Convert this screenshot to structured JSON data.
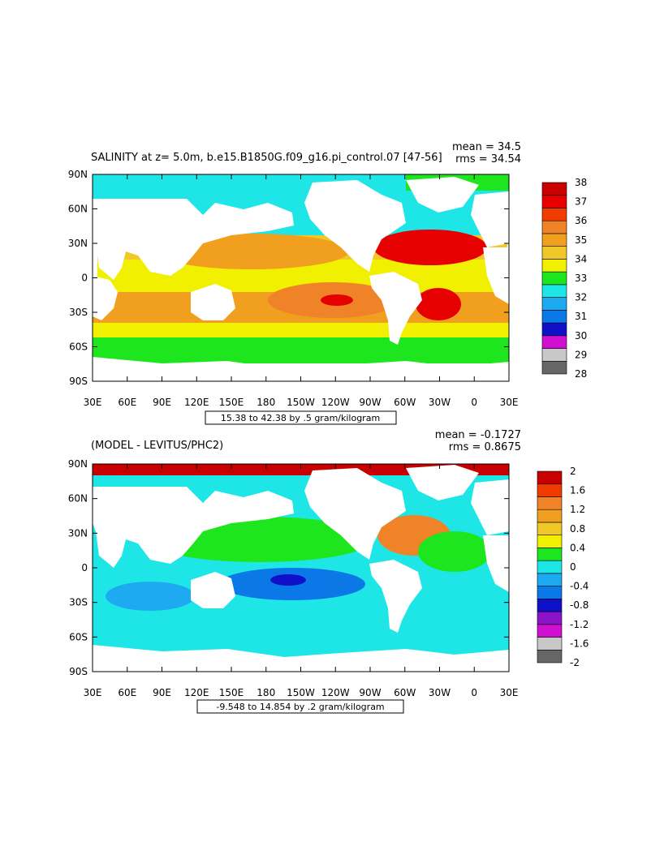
{
  "chart_data": [
    {
      "type": "heatmap",
      "title": "SALINITY at z=    5.0m, b.e15.B1850G.f09_g16.pi_control.07 [47-56]",
      "stats": {
        "mean": "mean = 34.5",
        "rms": "rms = 34.54"
      },
      "x_ticks": [
        "30E",
        "60E",
        "90E",
        "120E",
        "150E",
        "180",
        "150W",
        "120W",
        "90W",
        "60W",
        "30W",
        "0",
        "30E"
      ],
      "y_ticks": [
        "90N",
        "60N",
        "30N",
        "0",
        "30S",
        "60S",
        "90S"
      ],
      "xlim": [
        30,
        390
      ],
      "ylim": [
        -90,
        90
      ],
      "contour_info": "15.38 to 42.38 by .5 gram/kilogram",
      "colorbar": {
        "levels": [
          28,
          29,
          30,
          31,
          32,
          33,
          34,
          35,
          36,
          37,
          38
        ],
        "labels": [
          "38",
          "37",
          "36",
          "35",
          "34",
          "33",
          "32",
          "31",
          "30",
          "29",
          "28"
        ],
        "colors": [
          "#666666",
          "#c8c8c8",
          "#d010d0",
          "#1010c8",
          "#0a78e6",
          "#1eaaf0",
          "#1ee6e6",
          "#1ee61e",
          "#f0f000",
          "#f0c828",
          "#f0a01e",
          "#f08228",
          "#f03c00",
          "#e60000",
          "#c80000"
        ]
      }
    },
    {
      "type": "heatmap",
      "title": "(MODEL - LEVITUS/PHC2)",
      "stats": {
        "mean": "mean = -0.1727",
        "rms": "rms = 0.8675"
      },
      "x_ticks": [
        "30E",
        "60E",
        "90E",
        "120E",
        "150E",
        "180",
        "150W",
        "120W",
        "90W",
        "60W",
        "30W",
        "0",
        "30E"
      ],
      "y_ticks": [
        "90N",
        "60N",
        "30N",
        "0",
        "30S",
        "60S",
        "90S"
      ],
      "xlim": [
        30,
        390
      ],
      "ylim": [
        -90,
        90
      ],
      "contour_info": "-9.548 to 14.854 by .2 gram/kilogram",
      "colorbar": {
        "levels": [
          -2,
          -1.6,
          -1.2,
          -0.8,
          -0.4,
          0,
          0.4,
          0.8,
          1.2,
          1.6,
          2
        ],
        "labels": [
          "2",
          "1.6",
          "1.2",
          "0.8",
          "0.4",
          "0",
          "-0.4",
          "-0.8",
          "-1.2",
          "-1.6",
          "-2"
        ],
        "colors": [
          "#666666",
          "#c8c8c8",
          "#d010d0",
          "#8c14c8",
          "#1010c8",
          "#0a78e6",
          "#1eaaf0",
          "#1ee6e6",
          "#1ee61e",
          "#f0f000",
          "#f0c828",
          "#f0a01e",
          "#f08228",
          "#f03c00",
          "#c80000"
        ]
      }
    }
  ]
}
